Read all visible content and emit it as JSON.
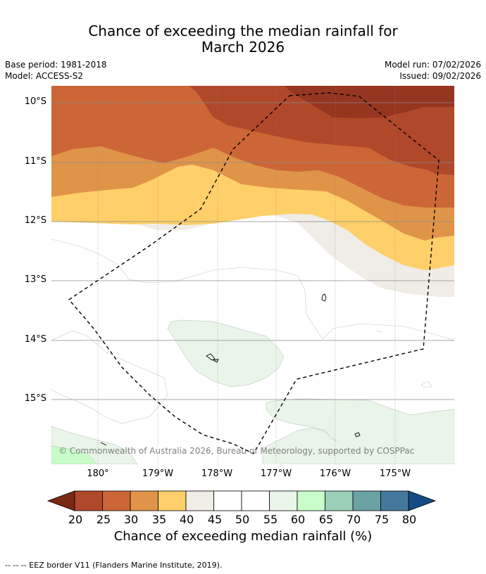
{
  "title": {
    "line1": "Chance of exceeding the median rainfall for",
    "line2": "March 2026"
  },
  "meta": {
    "base_period": "Base period: 1981-2018",
    "model": "Model: ACCESS-S2",
    "model_run": "Model run: 07/02/2026",
    "issued": "Issued: 09/02/2026"
  },
  "axes": {
    "lat_labels": [
      "10°S",
      "11°S",
      "12°S",
      "13°S",
      "14°S",
      "15°S"
    ],
    "lon_labels": [
      "180°",
      "179°W",
      "178°W",
      "177°W",
      "176°W",
      "175°W"
    ]
  },
  "credit": "© Commonwealth of Australia 2026, Bureau of Meteorology, supported by COSPPac",
  "colorbar": {
    "ticks": [
      "20",
      "25",
      "30",
      "35",
      "40",
      "45",
      "50",
      "55",
      "60",
      "65",
      "70",
      "75",
      "80"
    ],
    "label": "Chance of exceeding median rainfall (%)",
    "colors": [
      "#7a2a14",
      "#b0482a",
      "#cc6636",
      "#e09448",
      "#ffcf6a",
      "#f0ece6",
      "#ffffff",
      "#ffffff",
      "#e8f5e8",
      "#c8fcc8",
      "#9bcfb8",
      "#6aa2a6",
      "#44789c",
      "#164a84"
    ]
  },
  "footnote": "--  --  -- EEZ border V11 (Flanders Marine Institute, 2019).",
  "colors": {
    "dark": "#963520",
    "brick": "#b0482a",
    "orange": "#cc6636",
    "light_orange": "#e09448",
    "yellow": "#ffcf6a",
    "cream": "#f0ece6",
    "light_green": "#e8f5e8",
    "green": "#c8fcc8"
  }
}
